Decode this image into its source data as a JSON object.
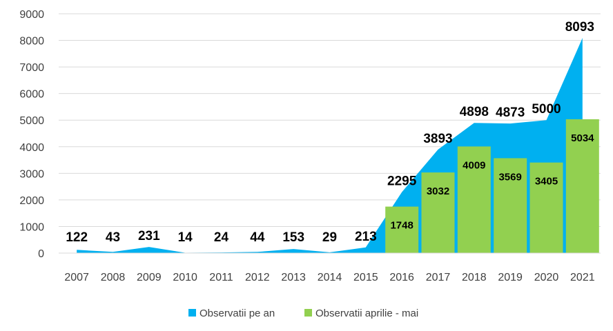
{
  "chart_data": {
    "type": "area",
    "categories": [
      "2007",
      "2008",
      "2009",
      "2010",
      "2011",
      "2012",
      "2013",
      "2014",
      "2015",
      "2016",
      "2017",
      "2018",
      "2019",
      "2020",
      "2021"
    ],
    "ylim": [
      0,
      9000
    ],
    "yticks": [
      0,
      1000,
      2000,
      3000,
      4000,
      5000,
      6000,
      7000,
      8000,
      9000
    ],
    "grid": true,
    "legend_position": "bottom",
    "series": [
      {
        "name": "Observatii pe an",
        "type": "area",
        "color": "#00b0f0",
        "values": [
          122,
          43,
          231,
          14,
          24,
          44,
          153,
          29,
          213,
          2295,
          3893,
          4898,
          4873,
          5000,
          8093
        ]
      },
      {
        "name": "Observatii aprilie - mai",
        "type": "bar",
        "color": "#92d050",
        "values": [
          null,
          null,
          null,
          null,
          null,
          null,
          null,
          null,
          null,
          1748,
          3032,
          4009,
          3569,
          3405,
          5034
        ]
      }
    ]
  }
}
